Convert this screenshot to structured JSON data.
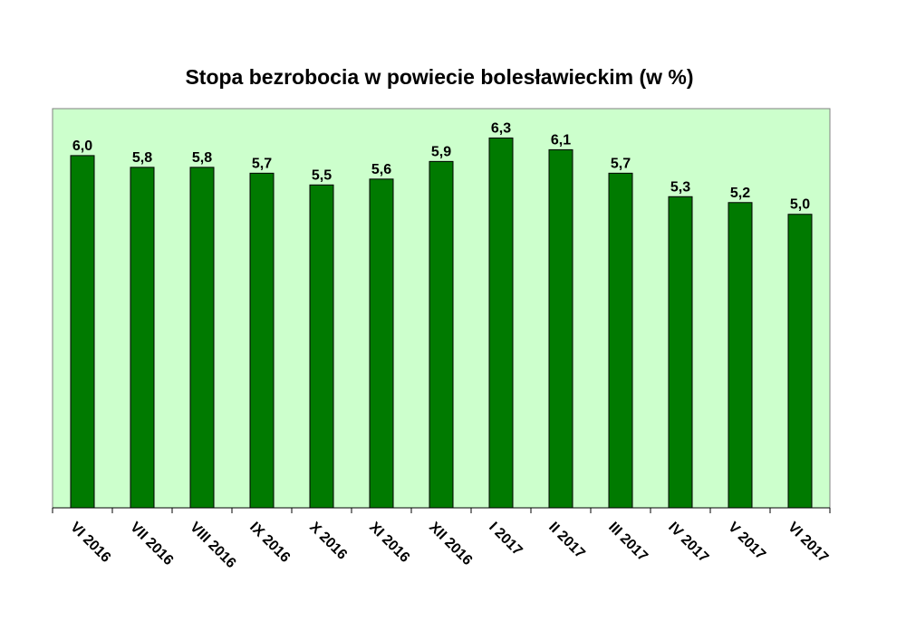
{
  "colors": {
    "plot_background": "#ccffcc",
    "bar_fill": "#007a00",
    "bar_stroke": "#000000",
    "text": "#000000"
  },
  "chart_data": {
    "type": "bar",
    "title": "Stopa bezrobocia w powiecie bolesławieckim (w %)",
    "xlabel": "",
    "ylabel": "",
    "ylim": [
      0,
      6.8
    ],
    "grid": false,
    "legend": "none",
    "categories": [
      "VI 2016",
      "VII 2016",
      "VIII 2016",
      "IX 2016",
      "X 2016",
      "XI 2016",
      "XII 2016",
      "I 2017",
      "II 2017",
      "III 2017",
      "IV 2017",
      "V 2017",
      "VI 2017"
    ],
    "values": [
      6.0,
      5.8,
      5.8,
      5.7,
      5.5,
      5.6,
      5.9,
      6.3,
      6.1,
      5.7,
      5.3,
      5.2,
      5.0
    ],
    "value_labels": [
      "6,0",
      "5,8",
      "5,8",
      "5,7",
      "5,5",
      "5,6",
      "5,9",
      "6,3",
      "6,1",
      "5,7",
      "5,3",
      "5,2",
      "5,0"
    ]
  }
}
